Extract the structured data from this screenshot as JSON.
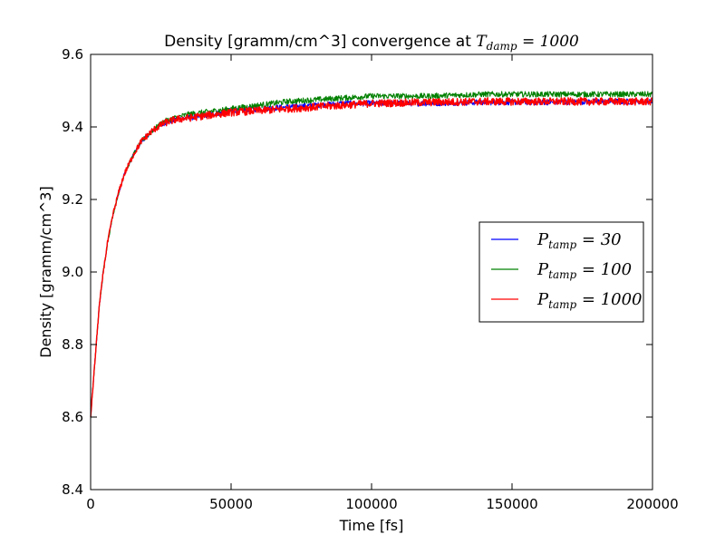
{
  "chart_data": {
    "type": "line",
    "title_prefix": "Density [gramm/cm^3] convergence at ",
    "title_math": {
      "base": "T",
      "sub": "damp",
      "rest": " = 1000"
    },
    "xlabel": "Time [fs]",
    "ylabel": "Density [gramm/cm^3]",
    "xlim": [
      0,
      200000
    ],
    "ylim": [
      8.4,
      9.6
    ],
    "xticks": [
      0,
      50000,
      100000,
      150000,
      200000
    ],
    "xtick_labels": [
      "0",
      "50000",
      "100000",
      "150000",
      "200000"
    ],
    "yticks": [
      8.4,
      8.6,
      8.8,
      9.0,
      9.2,
      9.4,
      9.6
    ],
    "ytick_labels": [
      "8.4",
      "8.6",
      "8.8",
      "9.0",
      "9.2",
      "9.4",
      "9.6"
    ],
    "grid": false,
    "legend_position": "center-right",
    "series": [
      {
        "name": "P_tamp = 30",
        "legend_math": {
          "base": "P",
          "sub": "tamp",
          "rest": " = 30"
        },
        "color": "#0000ff",
        "noise": 0.006,
        "x": [
          0,
          1500,
          3000,
          4500,
          6000,
          8000,
          10000,
          12000,
          15000,
          18000,
          22000,
          26000,
          30000,
          35000,
          40000,
          50000,
          60000,
          70000,
          80000,
          90000,
          100000,
          120000,
          140000,
          160000,
          180000,
          200000
        ],
        "y": [
          8.6,
          8.75,
          8.9,
          9.0,
          9.08,
          9.16,
          9.22,
          9.27,
          9.32,
          9.36,
          9.39,
          9.41,
          9.42,
          9.425,
          9.43,
          9.445,
          9.45,
          9.455,
          9.46,
          9.465,
          9.465,
          9.465,
          9.468,
          9.468,
          9.47,
          9.47
        ]
      },
      {
        "name": "P_tamp = 100",
        "legend_math": {
          "base": "P",
          "sub": "tamp",
          "rest": " = 100"
        },
        "color": "#008000",
        "noise": 0.006,
        "x": [
          0,
          1500,
          3000,
          4500,
          6000,
          8000,
          10000,
          12000,
          15000,
          18000,
          22000,
          26000,
          30000,
          35000,
          40000,
          50000,
          60000,
          70000,
          80000,
          90000,
          100000,
          120000,
          140000,
          160000,
          180000,
          200000
        ],
        "y": [
          8.6,
          8.75,
          8.9,
          9.0,
          9.08,
          9.16,
          9.22,
          9.27,
          9.32,
          9.36,
          9.39,
          9.415,
          9.425,
          9.435,
          9.44,
          9.45,
          9.46,
          9.47,
          9.475,
          9.48,
          9.485,
          9.485,
          9.49,
          9.49,
          9.49,
          9.49
        ]
      },
      {
        "name": "P_tamp = 1000",
        "legend_math": {
          "base": "P",
          "sub": "tamp",
          "rest": " = 1000"
        },
        "color": "#ff0000",
        "noise": 0.008,
        "x": [
          0,
          1500,
          3000,
          4500,
          6000,
          8000,
          10000,
          12000,
          15000,
          18000,
          22000,
          26000,
          30000,
          35000,
          40000,
          50000,
          60000,
          70000,
          80000,
          90000,
          100000,
          120000,
          140000,
          160000,
          180000,
          200000
        ],
        "y": [
          8.6,
          8.75,
          8.9,
          9.0,
          9.08,
          9.16,
          9.22,
          9.27,
          9.32,
          9.36,
          9.39,
          9.41,
          9.42,
          9.425,
          9.43,
          9.44,
          9.445,
          9.45,
          9.455,
          9.46,
          9.465,
          9.468,
          9.47,
          9.47,
          9.47,
          9.47
        ]
      }
    ]
  }
}
